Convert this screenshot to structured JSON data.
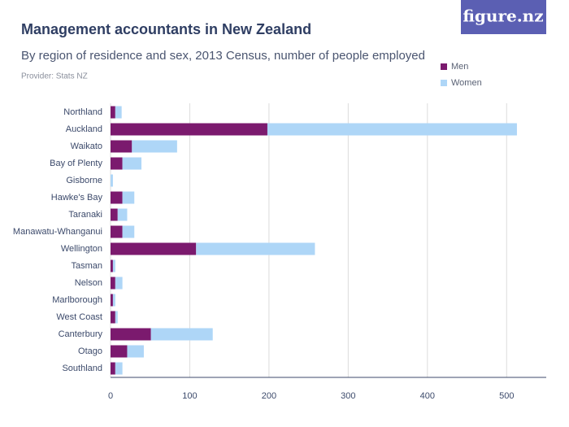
{
  "logo": "figure.nz",
  "chart_data": {
    "type": "stacked-bar-horizontal",
    "title": "Management accountants in New Zealand",
    "subtitle": "By region of residence and sex, 2013 Census, number of people employed",
    "provider": "Provider: Stats NZ",
    "categories": [
      "Northland",
      "Auckland",
      "Waikato",
      "Bay of Plenty",
      "Gisborne",
      "Hawke's Bay",
      "Taranaki",
      "Manawatu-Whanganui",
      "Wellington",
      "Tasman",
      "Nelson",
      "Marlborough",
      "West Coast",
      "Canterbury",
      "Otago",
      "Southland"
    ],
    "series": [
      {
        "name": "Men",
        "color": "#7b1a6e",
        "values": [
          6,
          198,
          27,
          15,
          0,
          15,
          9,
          15,
          108,
          3,
          6,
          3,
          6,
          51,
          21,
          6
        ]
      },
      {
        "name": "Women",
        "color": "#aed6f7",
        "values": [
          8,
          315,
          57,
          24,
          3,
          15,
          12,
          15,
          150,
          3,
          9,
          3,
          3,
          78,
          21,
          9
        ]
      }
    ],
    "xlim": [
      0,
      550
    ],
    "xticks": [
      0,
      100,
      200,
      300,
      400,
      500
    ],
    "grid": true,
    "legend": "top-right"
  }
}
